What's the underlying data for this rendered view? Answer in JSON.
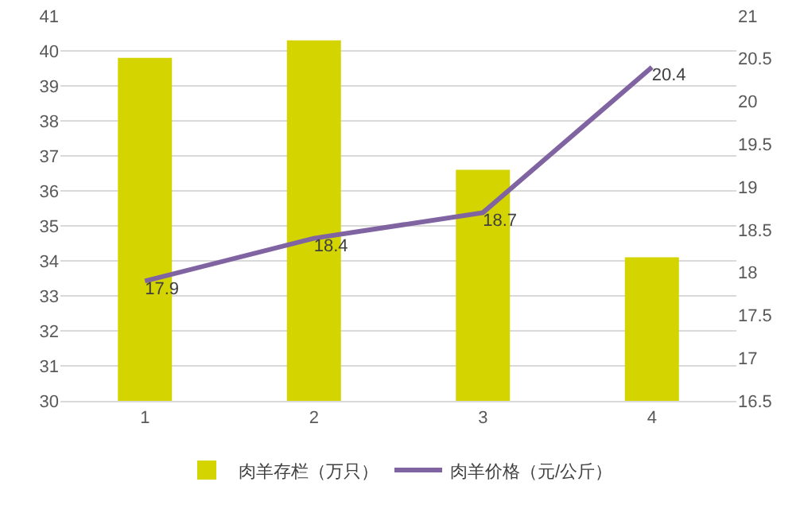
{
  "chart_data": {
    "type": "bar",
    "categories": [
      "1",
      "2",
      "3",
      "4"
    ],
    "series": [
      {
        "name": "肉羊存栏（万只）",
        "color": "#d4d400",
        "values": [
          39.8,
          40.3,
          36.6,
          34.1
        ]
      },
      {
        "name": "肉羊价格（元/公斤）",
        "type": "line",
        "axis": "y2",
        "color": "#8064a2",
        "values": [
          17.9,
          18.4,
          18.7,
          20.4
        ],
        "value_labels": [
          "17.9",
          "18.4",
          "18.7",
          "20.4"
        ]
      }
    ],
    "ylim": [
      30,
      41
    ],
    "yticks": [
      30,
      31,
      32,
      33,
      34,
      35,
      36,
      37,
      38,
      39,
      40,
      41
    ],
    "y2lim": [
      16.5,
      21
    ],
    "y2ticks": [
      16.5,
      17,
      17.5,
      18,
      18.5,
      19,
      19.5,
      20,
      20.5,
      21
    ],
    "grid": "y",
    "legend": "bottom",
    "marker": "none",
    "line_style": "solid"
  }
}
